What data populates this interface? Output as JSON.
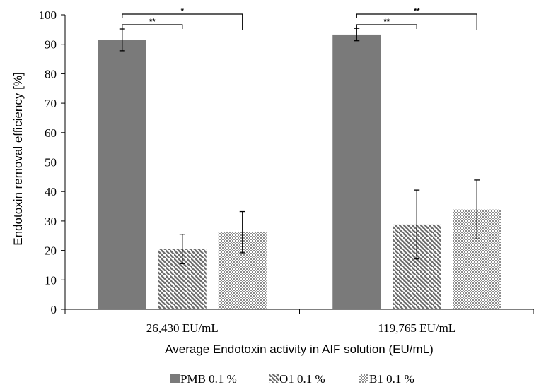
{
  "chart_data": {
    "type": "bar",
    "xlabel": "Average Endotoxin activity in AIF solution (EU/mL)",
    "ylabel": "Endotoxin removal efficiency [%]",
    "ylim": [
      0,
      100
    ],
    "yticks": [
      0,
      10,
      20,
      30,
      40,
      50,
      60,
      70,
      80,
      90,
      100
    ],
    "grid": false,
    "legend_position": "bottom",
    "categories": [
      "26,430 EU/mL",
      "119,765 EU/mL"
    ],
    "series": [
      {
        "name": "PMB 0.1 %",
        "values": [
          91.5,
          93.3
        ],
        "errors": [
          3.7,
          2.1
        ],
        "color": "#7a7a7a",
        "pattern": "solid"
      },
      {
        "name": "O1 0.1 %",
        "values": [
          20.5,
          28.8
        ],
        "errors": [
          5.0,
          11.7
        ],
        "color": "#6e6e6e",
        "pattern": "diagonal"
      },
      {
        "name": "B1 0.1 %",
        "values": [
          26.2,
          33.9
        ],
        "errors": [
          7.0,
          10.0
        ],
        "color": "#8c8c8c",
        "pattern": "dots"
      }
    ],
    "significance": [
      {
        "category": 0,
        "from_series": 0,
        "to_series": 1,
        "label": "**"
      },
      {
        "category": 0,
        "from_series": 0,
        "to_series": 2,
        "label": "*"
      },
      {
        "category": 1,
        "from_series": 0,
        "to_series": 1,
        "label": "**"
      },
      {
        "category": 1,
        "from_series": 0,
        "to_series": 2,
        "label": "**"
      }
    ]
  }
}
